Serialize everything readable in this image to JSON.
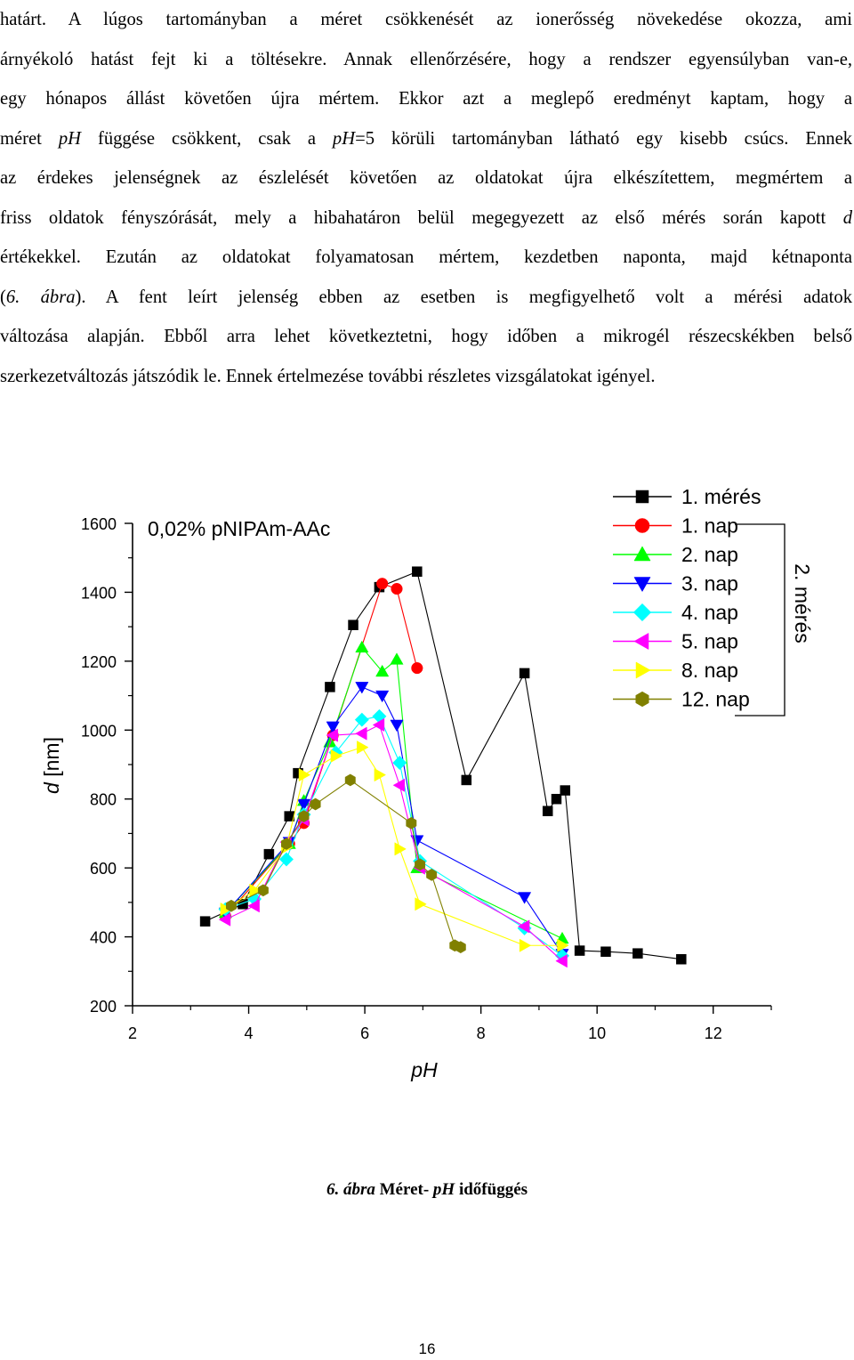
{
  "paragraph": {
    "lines": [
      [
        {
          "t": "határt. A lúgos tartományban a méret csökkenését az ionerősség növekedése okozza, ami"
        }
      ],
      [
        {
          "t": "árnyékoló hatást fejt ki a töltésekre. Annak ellenőrzésére, hogy a rendszer egyensúlyban van-e,"
        }
      ],
      [
        {
          "t": "egy hónapos állást követően újra mértem. Ekkor azt a meglepő eredményt kaptam, hogy a"
        }
      ],
      [
        {
          "t": "méret "
        },
        {
          "t": "pH",
          "i": true
        },
        {
          "t": " függése csökkent, csak a "
        },
        {
          "t": "pH",
          "i": true
        },
        {
          "t": "=5 körüli tartományban látható egy kisebb csúcs. Ennek"
        }
      ],
      [
        {
          "t": "az érdekes jelenségnek az észlelését követően az oldatokat újra elkészítettem, megmértem a"
        }
      ],
      [
        {
          "t": "friss oldatok fényszórását, mely a hibahatáron belül megegyezett az első mérés során kapott "
        },
        {
          "t": "d",
          "i": true
        }
      ],
      [
        {
          "t": "értékekkel. Ezután az oldatokat folyamatosan mértem, kezdetben naponta, majd kétnaponta"
        }
      ],
      [
        {
          "t": "("
        },
        {
          "t": "6. ábra",
          "i": true
        },
        {
          "t": "). A fent leírt jelenség ebben az esetben is megfigyelhető volt a mérési adatok"
        }
      ],
      [
        {
          "t": "változása alapján. Ebből arra lehet következtetni, hogy időben a mikrogél részecskékben belső"
        }
      ],
      [
        {
          "t": "szerkezetváltozás játszódik le. Ennek értelmezése további részletes vizsgálatokat igényel."
        }
      ]
    ]
  },
  "caption": {
    "number": "6. ábra",
    "text_before": " Méret- ",
    "italic": "pH",
    "text_after": " időfüggés"
  },
  "page_number": "16",
  "chart_data": {
    "type": "scatter",
    "title": "0,02% pNIPAm-AAc",
    "xlabel": "pH",
    "ylabel_italic": "d",
    "ylabel_rest": " [nm]",
    "xlim": [
      2,
      13
    ],
    "ylim": [
      200,
      1600
    ],
    "xticks": [
      2,
      4,
      6,
      8,
      10,
      12
    ],
    "yticks": [
      200,
      400,
      600,
      800,
      1000,
      1200,
      1400,
      1600
    ],
    "group_label": "2. mérés",
    "grid": false,
    "legend_position": "top-right",
    "series": [
      {
        "name": "1. mérés",
        "marker": "square",
        "color": "#000000",
        "points": [
          [
            3.25,
            445
          ],
          [
            3.9,
            495
          ],
          [
            4.35,
            640
          ],
          [
            4.7,
            750
          ],
          [
            4.85,
            875
          ],
          [
            5.4,
            1125
          ],
          [
            5.8,
            1305
          ],
          [
            6.25,
            1415
          ],
          [
            6.9,
            1460
          ],
          [
            7.75,
            855
          ],
          [
            8.75,
            1165
          ],
          [
            9.15,
            765
          ],
          [
            9.3,
            800
          ],
          [
            9.45,
            825
          ],
          [
            9.7,
            360
          ],
          [
            10.15,
            357
          ],
          [
            10.7,
            352
          ],
          [
            11.45,
            335
          ]
        ]
      },
      {
        "name": "1. nap",
        "marker": "circle",
        "color": "#ff0000",
        "points": [
          [
            3.6,
            460
          ],
          [
            4.7,
            670
          ],
          [
            4.95,
            730
          ],
          [
            5.45,
            985
          ],
          [
            6.3,
            1425
          ],
          [
            6.55,
            1410
          ],
          [
            6.9,
            1180
          ]
        ]
      },
      {
        "name": "2. nap",
        "marker": "triangle-up",
        "color": "#00ff00",
        "points": [
          [
            3.6,
            470
          ],
          [
            4.7,
            670
          ],
          [
            4.95,
            795
          ],
          [
            5.4,
            965
          ],
          [
            5.95,
            1240
          ],
          [
            6.3,
            1170
          ],
          [
            6.55,
            1205
          ],
          [
            6.9,
            600
          ],
          [
            9.4,
            395
          ]
        ]
      },
      {
        "name": "3. nap",
        "marker": "triangle-down",
        "color": "#0000ff",
        "points": [
          [
            3.6,
            470
          ],
          [
            4.7,
            675
          ],
          [
            4.95,
            785
          ],
          [
            5.45,
            1010
          ],
          [
            5.95,
            1125
          ],
          [
            6.3,
            1100
          ],
          [
            6.55,
            1015
          ],
          [
            6.9,
            680
          ],
          [
            8.75,
            515
          ],
          [
            9.4,
            350
          ]
        ]
      },
      {
        "name": "4. nap",
        "marker": "diamond",
        "color": "#00ffff",
        "points": [
          [
            3.6,
            480
          ],
          [
            4.1,
            510
          ],
          [
            4.65,
            625
          ],
          [
            4.95,
            755
          ],
          [
            5.5,
            935
          ],
          [
            5.95,
            1030
          ],
          [
            6.25,
            1040
          ],
          [
            6.6,
            905
          ],
          [
            6.95,
            620
          ],
          [
            8.75,
            425
          ],
          [
            9.4,
            345
          ]
        ]
      },
      {
        "name": "5. nap",
        "marker": "triangle-left",
        "color": "#ff00ff",
        "points": [
          [
            3.6,
            450
          ],
          [
            4.1,
            490
          ],
          [
            4.65,
            675
          ],
          [
            4.95,
            740
          ],
          [
            5.45,
            985
          ],
          [
            5.95,
            990
          ],
          [
            6.25,
            1015
          ],
          [
            6.6,
            840
          ],
          [
            6.95,
            600
          ],
          [
            8.75,
            430
          ],
          [
            9.4,
            330
          ]
        ]
      },
      {
        "name": "8. nap",
        "marker": "triangle-right",
        "color": "#ffff00",
        "points": [
          [
            3.6,
            480
          ],
          [
            4.1,
            535
          ],
          [
            4.65,
            660
          ],
          [
            4.95,
            870
          ],
          [
            5.5,
            925
          ],
          [
            5.95,
            950
          ],
          [
            6.25,
            870
          ],
          [
            6.6,
            655
          ],
          [
            6.95,
            495
          ],
          [
            8.75,
            375
          ],
          [
            9.4,
            375
          ]
        ]
      },
      {
        "name": "12. nap",
        "marker": "hexagon",
        "color": "#808000",
        "points": [
          [
            3.7,
            490
          ],
          [
            4.25,
            535
          ],
          [
            4.65,
            670
          ],
          [
            4.95,
            750
          ],
          [
            5.15,
            785
          ],
          [
            5.75,
            855
          ],
          [
            6.8,
            730
          ],
          [
            6.95,
            610
          ],
          [
            7.15,
            580
          ],
          [
            7.55,
            375
          ],
          [
            7.65,
            370
          ]
        ]
      }
    ]
  }
}
